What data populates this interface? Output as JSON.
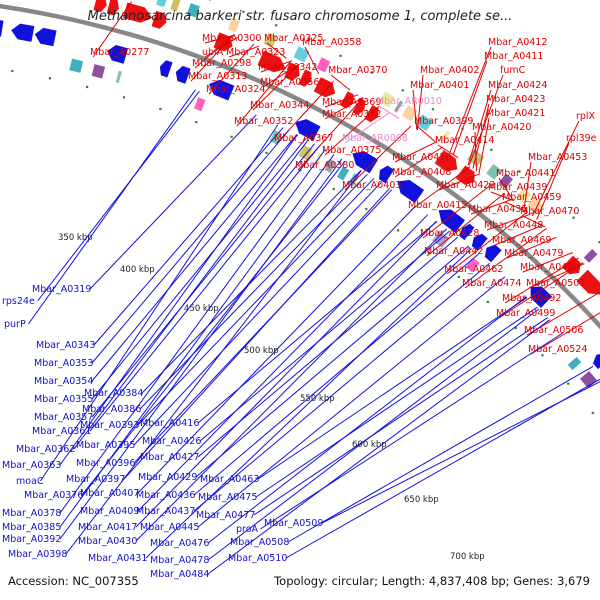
{
  "title": "Methanosarcina barkeri str. fusaro chromosome 1, complete se...",
  "footer": {
    "accession": "Accession: NC_007355",
    "topology": "Topology: circular; Length: 4,837,408 bp; Genes: 3,679"
  },
  "colors": {
    "forward": "#ee1111",
    "reverse": "#1111dd",
    "rna": "#ee99cc",
    "backbone": "#888888",
    "gc_dots": "#228822"
  },
  "ticks": [
    "350 kbp",
    "400 kbp",
    "450 kbp",
    "500 kbp",
    "550 kbp",
    "600 kbp",
    "650 kbp",
    "700 kbp"
  ],
  "forward_labels": [
    {
      "text": "Mbar_A0277",
      "color": "#dd0000"
    },
    {
      "text": "Mbar_A0300",
      "color": "#dd0000"
    },
    {
      "text": "Mbar_A0325",
      "color": "#dd0000"
    },
    {
      "text": "ubiA",
      "color": "#dd0000"
    },
    {
      "text": "Mbar_A0323",
      "color": "#dd0000"
    },
    {
      "text": "Mbar_A0358",
      "color": "#dd0000"
    },
    {
      "text": "Mbar_A0298",
      "color": "#dd0000"
    },
    {
      "text": "Mbar_A0342",
      "color": "#dd0000"
    },
    {
      "text": "Mbar_A0313",
      "color": "#dd0000"
    },
    {
      "text": "Mbar_A0356",
      "color": "#dd0000"
    },
    {
      "text": "Mbar_A0370",
      "color": "#dd0000"
    },
    {
      "text": "Mbar_A0324",
      "color": "#dd0000"
    },
    {
      "text": "Mbar_A0344",
      "color": "#dd0000"
    },
    {
      "text": "Mbar_A0369",
      "color": "#dd0000"
    },
    {
      "text": "Mbar_AR0010",
      "color": "#ee88cc"
    },
    {
      "text": "Mbar_A0352",
      "color": "#dd0000"
    },
    {
      "text": "Mbar_A0372",
      "color": "#dd0000"
    },
    {
      "text": "Mbar_A0367",
      "color": "#dd0000"
    },
    {
      "text": "Mbar_AR0008",
      "color": "#ee88cc"
    },
    {
      "text": "Mbar_A0375",
      "color": "#dd0000"
    },
    {
      "text": "Mbar_A0380",
      "color": "#dd0000"
    },
    {
      "text": "Mbar_A0412",
      "color": "#dd0000"
    },
    {
      "text": "Mbar_A0411",
      "color": "#dd0000"
    },
    {
      "text": "Mbar_A0402",
      "color": "#dd0000"
    },
    {
      "text": "fumC",
      "color": "#dd0000"
    },
    {
      "text": "Mbar_A0401",
      "color": "#dd0000"
    },
    {
      "text": "Mbar_A0424",
      "color": "#dd0000"
    },
    {
      "text": "Mbar_A0423",
      "color": "#dd0000"
    },
    {
      "text": "Mbar_A0421",
      "color": "#dd0000"
    },
    {
      "text": "Mbar_A0399",
      "color": "#dd0000"
    },
    {
      "text": "Mbar_A0420",
      "color": "#dd0000"
    },
    {
      "text": "rplX",
      "color": "#dd0000"
    },
    {
      "text": "Mbar_A0414",
      "color": "#dd0000"
    },
    {
      "text": "rpl39e",
      "color": "#dd0000"
    },
    {
      "text": "Mbar_A0410",
      "color": "#dd0000"
    },
    {
      "text": "Mbar_A0453",
      "color": "#dd0000"
    },
    {
      "text": "Mbar_A0408",
      "color": "#dd0000"
    },
    {
      "text": "Mbar_A0441",
      "color": "#dd0000"
    },
    {
      "text": "Mbar_A0403",
      "color": "#dd0000"
    },
    {
      "text": "Mbar_A0422",
      "color": "#dd0000"
    },
    {
      "text": "Mbar_A0439",
      "color": "#dd0000"
    },
    {
      "text": "Mbar_A0459",
      "color": "#dd0000"
    },
    {
      "text": "Mbar_A0415",
      "color": "#dd0000"
    },
    {
      "text": "Mbar_A0435",
      "color": "#dd0000"
    },
    {
      "text": "Mbar_A0470",
      "color": "#dd0000"
    },
    {
      "text": "Mbar_A0448",
      "color": "#dd0000"
    },
    {
      "text": "Mbar_A0428",
      "color": "#dd0000"
    },
    {
      "text": "Mbar_A0469",
      "color": "#dd0000"
    },
    {
      "text": "Mbar_A0442",
      "color": "#dd0000"
    },
    {
      "text": "Mbar_A0479",
      "color": "#dd0000"
    },
    {
      "text": "Mbar_A0462",
      "color": "#dd0000"
    },
    {
      "text": "Mbar_A0489",
      "color": "#dd0000"
    },
    {
      "text": "Mbar_A0474",
      "color": "#dd0000"
    },
    {
      "text": "Mbar_A0501",
      "color": "#dd0000"
    },
    {
      "text": "Mbar_A0492",
      "color": "#dd0000"
    },
    {
      "text": "Mbar_A0499",
      "color": "#dd0000"
    },
    {
      "text": "Mbar_A0506",
      "color": "#dd0000"
    },
    {
      "text": "Mbar_A0524",
      "color": "#dd0000"
    }
  ],
  "reverse_labels": [
    {
      "text": "Mbar_A0319"
    },
    {
      "text": "rps24e"
    },
    {
      "text": "purP"
    },
    {
      "text": "Mbar_A0343"
    },
    {
      "text": "Mbar_A0353"
    },
    {
      "text": "Mbar_A0354"
    },
    {
      "text": "Mbar_A0384"
    },
    {
      "text": "Mbar_A0355"
    },
    {
      "text": "Mbar_A0386"
    },
    {
      "text": "Mbar_A0357"
    },
    {
      "text": "Mbar_A0393"
    },
    {
      "text": "Mbar_A0416"
    },
    {
      "text": "Mbar_A0361"
    },
    {
      "text": "Mbar_A0426"
    },
    {
      "text": "Mbar_A0362"
    },
    {
      "text": "Mbar_A0395"
    },
    {
      "text": "Mbar_A0427"
    },
    {
      "text": "Mbar_A0363"
    },
    {
      "text": "Mbar_A0396"
    },
    {
      "text": "moaC"
    },
    {
      "text": "Mbar_A0397"
    },
    {
      "text": "Mbar_A0429"
    },
    {
      "text": "Mbar_A0463"
    },
    {
      "text": "Mbar_A0376"
    },
    {
      "text": "Mbar_A0407"
    },
    {
      "text": "Mbar_A0436"
    },
    {
      "text": "Mbar_A0475"
    },
    {
      "text": "Mbar_A0378"
    },
    {
      "text": "Mbar_A0409"
    },
    {
      "text": "Mbar_A0437"
    },
    {
      "text": "Mbar_A0477"
    },
    {
      "text": "Mbar_A0385"
    },
    {
      "text": "Mbar_A0417"
    },
    {
      "text": "Mbar_A0445"
    },
    {
      "text": "Mbar_A0509"
    },
    {
      "text": "Mbar_A0392"
    },
    {
      "text": "Mbar_A0430"
    },
    {
      "text": "Mbar_A0476"
    },
    {
      "text": "proA"
    },
    {
      "text": "Mbar_A0398"
    },
    {
      "text": "Mbar_A0431"
    },
    {
      "text": "Mbar_A0478"
    },
    {
      "text": "Mbar_A0508"
    },
    {
      "text": "Mbar_A0484"
    },
    {
      "text": "Mbar_A0510"
    }
  ]
}
